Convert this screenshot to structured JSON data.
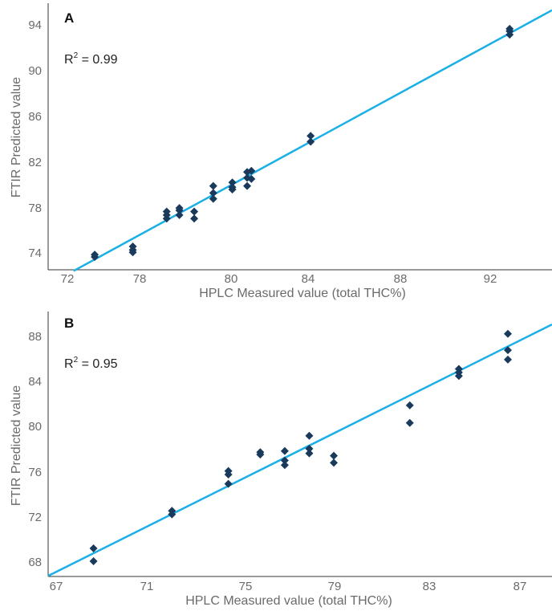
{
  "chart_data": [
    {
      "type": "scatter",
      "panel_label": "A",
      "annotation": {
        "r2_prefix": "R",
        "r2_sup": "2",
        "r2_value": " = 0.99"
      },
      "xlabel": "HPLC Measured value (total THC%)",
      "ylabel": "FTIR Predicted value",
      "xlim": [
        71.4,
        95.2
      ],
      "ylim": [
        72.7,
        95.6
      ],
      "xticks": [
        "72",
        "78",
        "80",
        "84",
        "88",
        "92"
      ],
      "yticks": [
        "74",
        "78",
        "82",
        "86",
        "90",
        "94"
      ],
      "grid": false,
      "colors": {
        "points": "#1a3a5c",
        "line": "#1ab0e6",
        "axis": "#333333"
      },
      "regression_line": {
        "x": [
          72.6,
          95.2
        ],
        "y": [
          72.6,
          95.0
        ]
      },
      "points": [
        {
          "x": 73.6,
          "y": 74.0
        },
        {
          "x": 73.6,
          "y": 73.8
        },
        {
          "x": 75.4,
          "y": 74.7
        },
        {
          "x": 75.4,
          "y": 74.4
        },
        {
          "x": 75.4,
          "y": 74.2
        },
        {
          "x": 77.0,
          "y": 77.7
        },
        {
          "x": 77.0,
          "y": 77.4
        },
        {
          "x": 77.0,
          "y": 77.1
        },
        {
          "x": 77.6,
          "y": 78.0
        },
        {
          "x": 77.6,
          "y": 77.8
        },
        {
          "x": 77.6,
          "y": 77.4
        },
        {
          "x": 78.3,
          "y": 77.7
        },
        {
          "x": 78.3,
          "y": 77.1
        },
        {
          "x": 79.2,
          "y": 79.9
        },
        {
          "x": 79.2,
          "y": 79.3
        },
        {
          "x": 79.2,
          "y": 78.8
        },
        {
          "x": 80.1,
          "y": 80.2
        },
        {
          "x": 80.1,
          "y": 79.8
        },
        {
          "x": 80.1,
          "y": 79.6
        },
        {
          "x": 80.8,
          "y": 81.1
        },
        {
          "x": 80.8,
          "y": 80.6
        },
        {
          "x": 80.8,
          "y": 79.9
        },
        {
          "x": 81.0,
          "y": 81.2
        },
        {
          "x": 81.0,
          "y": 80.5
        },
        {
          "x": 83.8,
          "y": 84.2
        },
        {
          "x": 83.8,
          "y": 83.7
        },
        {
          "x": 93.2,
          "y": 93.4
        },
        {
          "x": 93.2,
          "y": 93.2
        },
        {
          "x": 93.2,
          "y": 92.9
        }
      ]
    },
    {
      "type": "scatter",
      "panel_label": "B",
      "annotation": {
        "r2_prefix": "R",
        "r2_sup": "2",
        "r2_value": " = 0.95"
      },
      "xlabel": "HPLC Measured value (total THC%)",
      "ylabel": "FTIR Predicted value",
      "xlim": [
        66.75,
        87.3
      ],
      "ylim": [
        66.8,
        89.4
      ],
      "xticks": [
        "67",
        "71",
        "75",
        "79",
        "83",
        "87"
      ],
      "yticks": [
        "68",
        "72",
        "76",
        "80",
        "84",
        "88"
      ],
      "grid": false,
      "colors": {
        "points": "#1a3a5c",
        "line": "#1ab0e6",
        "axis": "#333333"
      },
      "regression_line": {
        "x": [
          66.75,
          87.3
        ],
        "y": [
          66.85,
          88.3
        ]
      },
      "points": [
        {
          "x": 68.6,
          "y": 69.2
        },
        {
          "x": 68.6,
          "y": 68.1
        },
        {
          "x": 71.8,
          "y": 72.4
        },
        {
          "x": 71.8,
          "y": 72.1
        },
        {
          "x": 74.1,
          "y": 75.8
        },
        {
          "x": 74.1,
          "y": 75.5
        },
        {
          "x": 74.1,
          "y": 74.7
        },
        {
          "x": 75.4,
          "y": 77.4
        },
        {
          "x": 75.4,
          "y": 77.2
        },
        {
          "x": 76.4,
          "y": 77.5
        },
        {
          "x": 76.4,
          "y": 76.7
        },
        {
          "x": 76.4,
          "y": 76.3
        },
        {
          "x": 77.4,
          "y": 78.8
        },
        {
          "x": 77.4,
          "y": 77.7
        },
        {
          "x": 77.4,
          "y": 77.3
        },
        {
          "x": 78.4,
          "y": 77.1
        },
        {
          "x": 78.4,
          "y": 76.5
        },
        {
          "x": 81.5,
          "y": 81.4
        },
        {
          "x": 81.5,
          "y": 79.9
        },
        {
          "x": 83.5,
          "y": 84.5
        },
        {
          "x": 83.5,
          "y": 84.2
        },
        {
          "x": 83.5,
          "y": 83.9
        },
        {
          "x": 85.5,
          "y": 87.5
        },
        {
          "x": 85.5,
          "y": 86.1
        },
        {
          "x": 85.5,
          "y": 85.3
        }
      ]
    }
  ]
}
